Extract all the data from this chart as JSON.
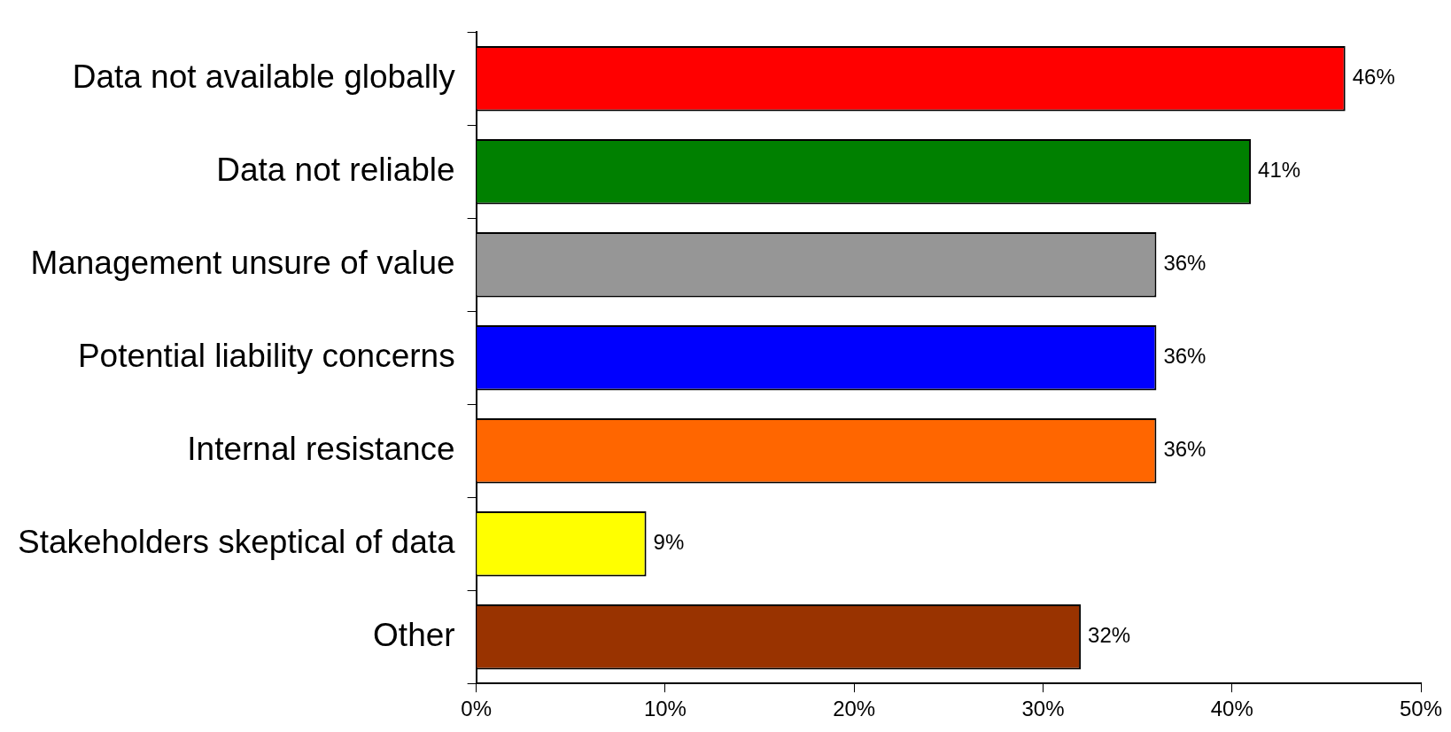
{
  "chart_data": {
    "type": "bar",
    "orientation": "horizontal",
    "categories": [
      "Data not available globally",
      "Data not reliable",
      "Management unsure of value",
      "Potential liability concerns",
      "Internal resistance",
      "Stakeholders skeptical of data",
      "Other"
    ],
    "values": [
      46,
      41,
      36,
      36,
      36,
      9,
      32
    ],
    "value_labels": [
      "46%",
      "41%",
      "36%",
      "36%",
      "36%",
      "9%",
      "32%"
    ],
    "colors": [
      "#ff0000",
      "#008000",
      "#969696",
      "#0000ff",
      "#ff6600",
      "#ffff00",
      "#993300"
    ],
    "xlim": [
      0,
      50
    ],
    "xticks": [
      {
        "value": 0,
        "label": "0%"
      },
      {
        "value": 10,
        "label": "10%"
      },
      {
        "value": 20,
        "label": "20%"
      },
      {
        "value": 30,
        "label": "30%"
      },
      {
        "value": 40,
        "label": "40%"
      },
      {
        "value": 50,
        "label": "50%"
      }
    ],
    "grid": false,
    "legend": false
  }
}
